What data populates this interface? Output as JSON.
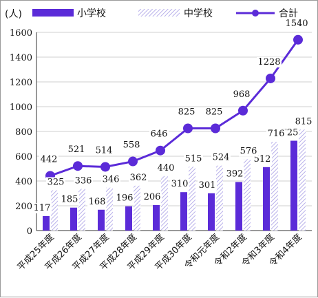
{
  "chart_data": {
    "type": "bar",
    "unit_label": "(人)",
    "categories": [
      "平成25年度",
      "平成26年度",
      "平成27年度",
      "平成28年度",
      "平成29年度",
      "平成30年度",
      "令和元年度",
      "令和2年度",
      "令和3年度",
      "令和4年度"
    ],
    "series": [
      {
        "name": "小学校",
        "kind": "bar",
        "pattern": "solid",
        "color": "#5b2bd8",
        "values": [
          117,
          185,
          168,
          196,
          206,
          310,
          301,
          392,
          512,
          725
        ]
      },
      {
        "name": "中学校",
        "kind": "bar",
        "pattern": "hatched",
        "color": "#c9c4ee",
        "values": [
          325,
          336,
          346,
          362,
          440,
          515,
          524,
          576,
          716,
          815
        ]
      },
      {
        "name": "合計",
        "kind": "line",
        "color": "#5b2bd8",
        "values": [
          442,
          521,
          514,
          558,
          646,
          825,
          825,
          968,
          1228,
          1540
        ]
      }
    ],
    "ylim": [
      0,
      1600
    ],
    "yticks": [
      0,
      200,
      400,
      600,
      800,
      1000,
      1200,
      1400,
      1600
    ],
    "grid": true,
    "legend": "top"
  }
}
